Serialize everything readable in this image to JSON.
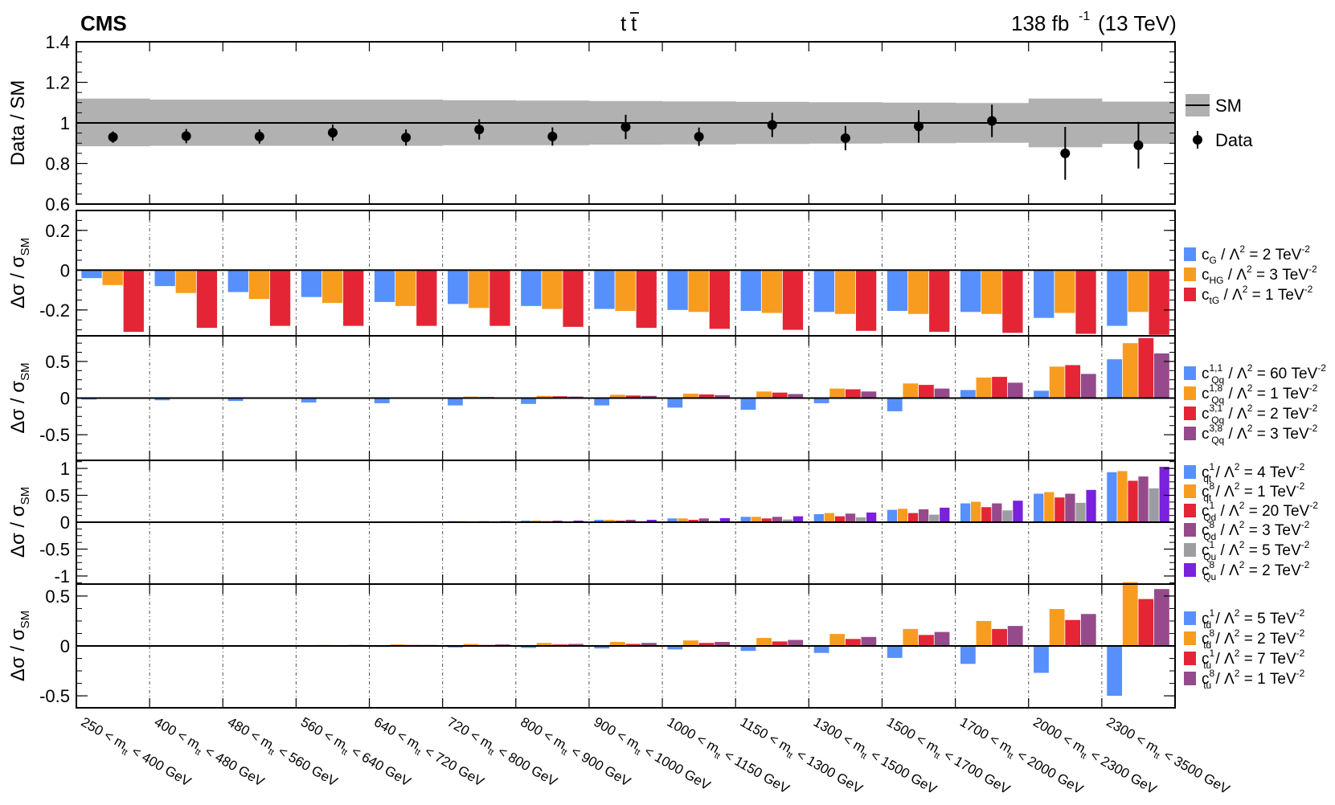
{
  "header": {
    "experiment": "CMS",
    "process_main": "t",
    "process_bar": "t",
    "lumi_value": "138 fb",
    "lumi_exponent": "-1",
    "lumi_energy": "(13 TeV)"
  },
  "colors": {
    "blue": "#5790fc",
    "orange": "#f89c20",
    "red": "#e42536",
    "purple": "#964a8b",
    "gray": "#9c9ca1",
    "violet": "#7a21dd",
    "band": "#b1b1b1"
  },
  "chart_data": [
    {
      "type": "scatter",
      "title": "",
      "ylabel": "Data / SM",
      "ylim": [
        0.6,
        1.4
      ],
      "yticks": [
        "0.6",
        "0.8",
        "1",
        "1.2",
        "1.4"
      ],
      "legend": [
        {
          "label": "SM",
          "marker": "line-band"
        },
        {
          "label": "Data",
          "marker": "point"
        }
      ],
      "categories": [
        "250 < m_tt < 400 GeV",
        "400 < m_tt < 480 GeV",
        "480 < m_tt < 560 GeV",
        "560 < m_tt < 640 GeV",
        "640 < m_tt < 720 GeV",
        "720 < m_tt < 800 GeV",
        "800 < m_tt < 900 GeV",
        "900 < m_tt < 1000 GeV",
        "1000 < m_tt < 1150 GeV",
        "1150 < m_tt < 1300 GeV",
        "1300 < m_tt < 1500 GeV",
        "1500 < m_tt < 1700 GeV",
        "1700 < m_tt < 2000 GeV",
        "2000 < m_tt < 2300 GeV",
        "2300 < m_tt < 3500 GeV"
      ],
      "data_values": [
        0.93,
        0.935,
        0.933,
        0.952,
        0.928,
        0.968,
        0.933,
        0.98,
        0.932,
        0.99,
        0.925,
        0.983,
        1.01,
        0.85,
        0.89
      ],
      "data_errors": [
        0.028,
        0.035,
        0.035,
        0.04,
        0.04,
        0.05,
        0.045,
        0.06,
        0.045,
        0.06,
        0.06,
        0.08,
        0.08,
        0.13,
        0.115
      ],
      "sm_band_up": [
        1.12,
        1.115,
        1.115,
        1.115,
        1.115,
        1.112,
        1.11,
        1.108,
        1.106,
        1.104,
        1.102,
        1.1,
        1.098,
        1.12,
        1.105
      ],
      "sm_band_down": [
        0.885,
        0.887,
        0.887,
        0.887,
        0.887,
        0.89,
        0.89,
        0.893,
        0.894,
        0.896,
        0.898,
        0.9,
        0.902,
        0.88,
        0.897
      ]
    },
    {
      "type": "bar",
      "ylabel": "Δσ / σSM",
      "ylim": [
        -0.33,
        0.3
      ],
      "yticks": [
        "-0.2",
        "0",
        "0.2"
      ],
      "series": [
        {
          "name": "cG",
          "label_coef": "c",
          "label_sub": "G",
          "label_sup": "",
          "label_rest": " / Λ",
          "label_tev": "2 TeV",
          "color": "blue",
          "values": [
            -0.04,
            -0.08,
            -0.11,
            -0.135,
            -0.16,
            -0.17,
            -0.18,
            -0.195,
            -0.2,
            -0.205,
            -0.21,
            -0.205,
            -0.21,
            -0.24,
            -0.28
          ]
        },
        {
          "name": "cHG",
          "label_coef": "c",
          "label_sub": "HG",
          "label_sup": "",
          "label_rest": " / Λ",
          "label_tev": "3 TeV",
          "color": "orange",
          "values": [
            -0.075,
            -0.115,
            -0.145,
            -0.165,
            -0.18,
            -0.19,
            -0.195,
            -0.205,
            -0.21,
            -0.215,
            -0.22,
            -0.22,
            -0.22,
            -0.215,
            -0.21
          ]
        },
        {
          "name": "ctG",
          "label_coef": "c",
          "label_sub": "tG",
          "label_sup": "",
          "label_rest": " / Λ",
          "label_tev": "1 TeV",
          "color": "red",
          "values": [
            -0.31,
            -0.29,
            -0.28,
            -0.28,
            -0.28,
            -0.28,
            -0.285,
            -0.29,
            -0.295,
            -0.3,
            -0.305,
            -0.31,
            -0.315,
            -0.32,
            -0.325
          ]
        }
      ]
    },
    {
      "type": "bar",
      "ylabel": "Δσ / σSM",
      "ylim": [
        -0.85,
        0.85
      ],
      "yticks": [
        "-0.5",
        "0",
        "0.5"
      ],
      "series": [
        {
          "name": "cQq11",
          "label_coef": "c",
          "label_sub": "Qq",
          "label_sup": "1,1",
          "label_rest": " / Λ",
          "label_tev": "60 TeV",
          "color": "blue",
          "values": [
            -0.02,
            -0.03,
            -0.04,
            -0.06,
            -0.07,
            -0.1,
            -0.08,
            -0.1,
            -0.13,
            -0.16,
            -0.07,
            -0.18,
            0.11,
            0.1,
            0.53
          ]
        },
        {
          "name": "cQq18",
          "label_coef": "c",
          "label_sub": "Qq",
          "label_sup": "1,8",
          "label_rest": " / Λ",
          "label_tev": "1 TeV",
          "color": "orange",
          "values": [
            0,
            0,
            0,
            0.005,
            0.01,
            0.02,
            0.03,
            0.045,
            0.06,
            0.09,
            0.13,
            0.2,
            0.28,
            0.43,
            0.75
          ]
        },
        {
          "name": "cQq31",
          "label_coef": "c",
          "label_sub": "Qq",
          "label_sup": "3,1",
          "label_rest": " / Λ",
          "label_tev": "2 TeV",
          "color": "red",
          "values": [
            0,
            0,
            0,
            0.005,
            0.01,
            0.015,
            0.025,
            0.035,
            0.05,
            0.075,
            0.12,
            0.18,
            0.29,
            0.45,
            0.82
          ]
        },
        {
          "name": "cQq38",
          "label_coef": "c",
          "label_sub": "Qq",
          "label_sup": "3,8",
          "label_rest": " / Λ",
          "label_tev": "3 TeV",
          "color": "purple",
          "values": [
            0,
            0,
            0,
            0.005,
            0.01,
            0.01,
            0.02,
            0.03,
            0.04,
            0.055,
            0.09,
            0.13,
            0.21,
            0.33,
            0.61
          ]
        }
      ]
    },
    {
      "type": "bar",
      "ylabel": "Δσ / σSM",
      "ylim": [
        -1.15,
        1.15
      ],
      "yticks": [
        "-1",
        "-0.5",
        "0",
        "0.5",
        "1"
      ],
      "series": [
        {
          "name": "cqt1",
          "label_coef": "c",
          "label_sub": "qt",
          "label_sup": "1",
          "label_rest": " / Λ",
          "label_tev": "4 TeV",
          "color": "blue",
          "values": [
            0,
            0,
            0.005,
            0.01,
            0.015,
            0.02,
            0.03,
            0.045,
            0.07,
            0.1,
            0.15,
            0.23,
            0.35,
            0.53,
            0.93
          ]
        },
        {
          "name": "cqt8",
          "label_coef": "c",
          "label_sub": "qt",
          "label_sup": "8",
          "label_rest": " / Λ",
          "label_tev": "1 TeV",
          "color": "orange",
          "values": [
            0,
            0,
            0.005,
            0.01,
            0.015,
            0.02,
            0.03,
            0.045,
            0.07,
            0.1,
            0.17,
            0.25,
            0.38,
            0.56,
            0.95
          ]
        },
        {
          "name": "cQd1",
          "label_coef": "c",
          "label_sub": "Qd",
          "label_sup": "1",
          "label_rest": " / Λ",
          "label_tev": "20 TeV",
          "color": "red",
          "values": [
            0,
            0,
            0.005,
            0.005,
            0.01,
            0.015,
            0.02,
            0.03,
            0.045,
            0.07,
            0.11,
            0.17,
            0.28,
            0.46,
            0.77
          ]
        },
        {
          "name": "cQd8",
          "label_coef": "c",
          "label_sub": "Qd",
          "label_sup": "8",
          "label_rest": " / Λ",
          "label_tev": "3 TeV",
          "color": "purple",
          "values": [
            0,
            0,
            0.005,
            0.01,
            0.015,
            0.02,
            0.03,
            0.045,
            0.07,
            0.1,
            0.16,
            0.24,
            0.35,
            0.53,
            0.85
          ]
        },
        {
          "name": "cQu1",
          "label_coef": "c",
          "label_sub": "Qu",
          "label_sup": "1",
          "label_rest": " / Λ",
          "label_tev": "5 TeV",
          "color": "gray",
          "values": [
            0,
            0,
            0,
            0.005,
            0.01,
            0.01,
            0.015,
            0.02,
            0.03,
            0.05,
            0.09,
            0.14,
            0.22,
            0.36,
            0.63
          ]
        },
        {
          "name": "cQu8",
          "label_coef": "c",
          "label_sub": "Qu",
          "label_sup": "8",
          "label_rest": " / Λ",
          "label_tev": "2 TeV",
          "color": "violet",
          "values": [
            0,
            0,
            0.005,
            0.01,
            0.015,
            0.02,
            0.03,
            0.045,
            0.075,
            0.11,
            0.18,
            0.27,
            0.4,
            0.6,
            1.03
          ]
        }
      ]
    },
    {
      "type": "bar",
      "ylabel": "Δσ / σSM",
      "ylim": [
        -0.62,
        0.62
      ],
      "yticks": [
        "-0.5",
        "0",
        "0.5"
      ],
      "series": [
        {
          "name": "ctd1",
          "label_coef": "c",
          "label_sub": "td",
          "label_sup": "1",
          "label_rest": " / Λ",
          "label_tev": "5 TeV",
          "color": "blue",
          "values": [
            0,
            0,
            0,
            -0.005,
            -0.01,
            -0.015,
            -0.02,
            -0.025,
            -0.035,
            -0.05,
            -0.07,
            -0.12,
            -0.18,
            -0.27,
            -0.5
          ]
        },
        {
          "name": "ctd8",
          "label_coef": "c",
          "label_sub": "td",
          "label_sup": "8",
          "label_rest": " / Λ",
          "label_tev": "2 TeV",
          "color": "orange",
          "values": [
            0.005,
            0.005,
            0.005,
            0.01,
            0.015,
            0.02,
            0.03,
            0.04,
            0.055,
            0.08,
            0.12,
            0.17,
            0.25,
            0.37,
            0.64
          ]
        },
        {
          "name": "ctu1",
          "label_coef": "c",
          "label_sub": "tu",
          "label_sup": "1",
          "label_rest": " / Λ",
          "label_tev": "7 TeV",
          "color": "red",
          "values": [
            0,
            0,
            0.005,
            0.005,
            0.01,
            0.01,
            0.015,
            0.02,
            0.03,
            0.045,
            0.07,
            0.11,
            0.17,
            0.26,
            0.47
          ]
        },
        {
          "name": "ctu8",
          "label_coef": "c",
          "label_sub": "tu",
          "label_sup": "8",
          "label_rest": " / Λ",
          "label_tev": "1 TeV",
          "color": "purple",
          "values": [
            0,
            0,
            0.005,
            0.01,
            0.01,
            0.015,
            0.02,
            0.03,
            0.04,
            0.06,
            0.09,
            0.14,
            0.2,
            0.32,
            0.57
          ]
        }
      ]
    }
  ],
  "xaxis": {
    "ticks": [
      {
        "lo": "250",
        "hi": "400"
      },
      {
        "lo": "400",
        "hi": "480"
      },
      {
        "lo": "480",
        "hi": "560"
      },
      {
        "lo": "560",
        "hi": "640"
      },
      {
        "lo": "640",
        "hi": "720"
      },
      {
        "lo": "720",
        "hi": "800"
      },
      {
        "lo": "800",
        "hi": "900"
      },
      {
        "lo": "900",
        "hi": "1000"
      },
      {
        "lo": "1000",
        "hi": "1150"
      },
      {
        "lo": "1150",
        "hi": "1300"
      },
      {
        "lo": "1300",
        "hi": "1500"
      },
      {
        "lo": "1500",
        "hi": "1700"
      },
      {
        "lo": "1700",
        "hi": "2000"
      },
      {
        "lo": "2000",
        "hi": "2300"
      },
      {
        "lo": "2300",
        "hi": "3500"
      }
    ],
    "variable": "m",
    "variable_sub": "tt",
    "lt": "<",
    "unit": "GeV"
  },
  "legend_common": {
    "lambda_sq": "2",
    "eq": " = ",
    "tev_exp": "-2"
  }
}
